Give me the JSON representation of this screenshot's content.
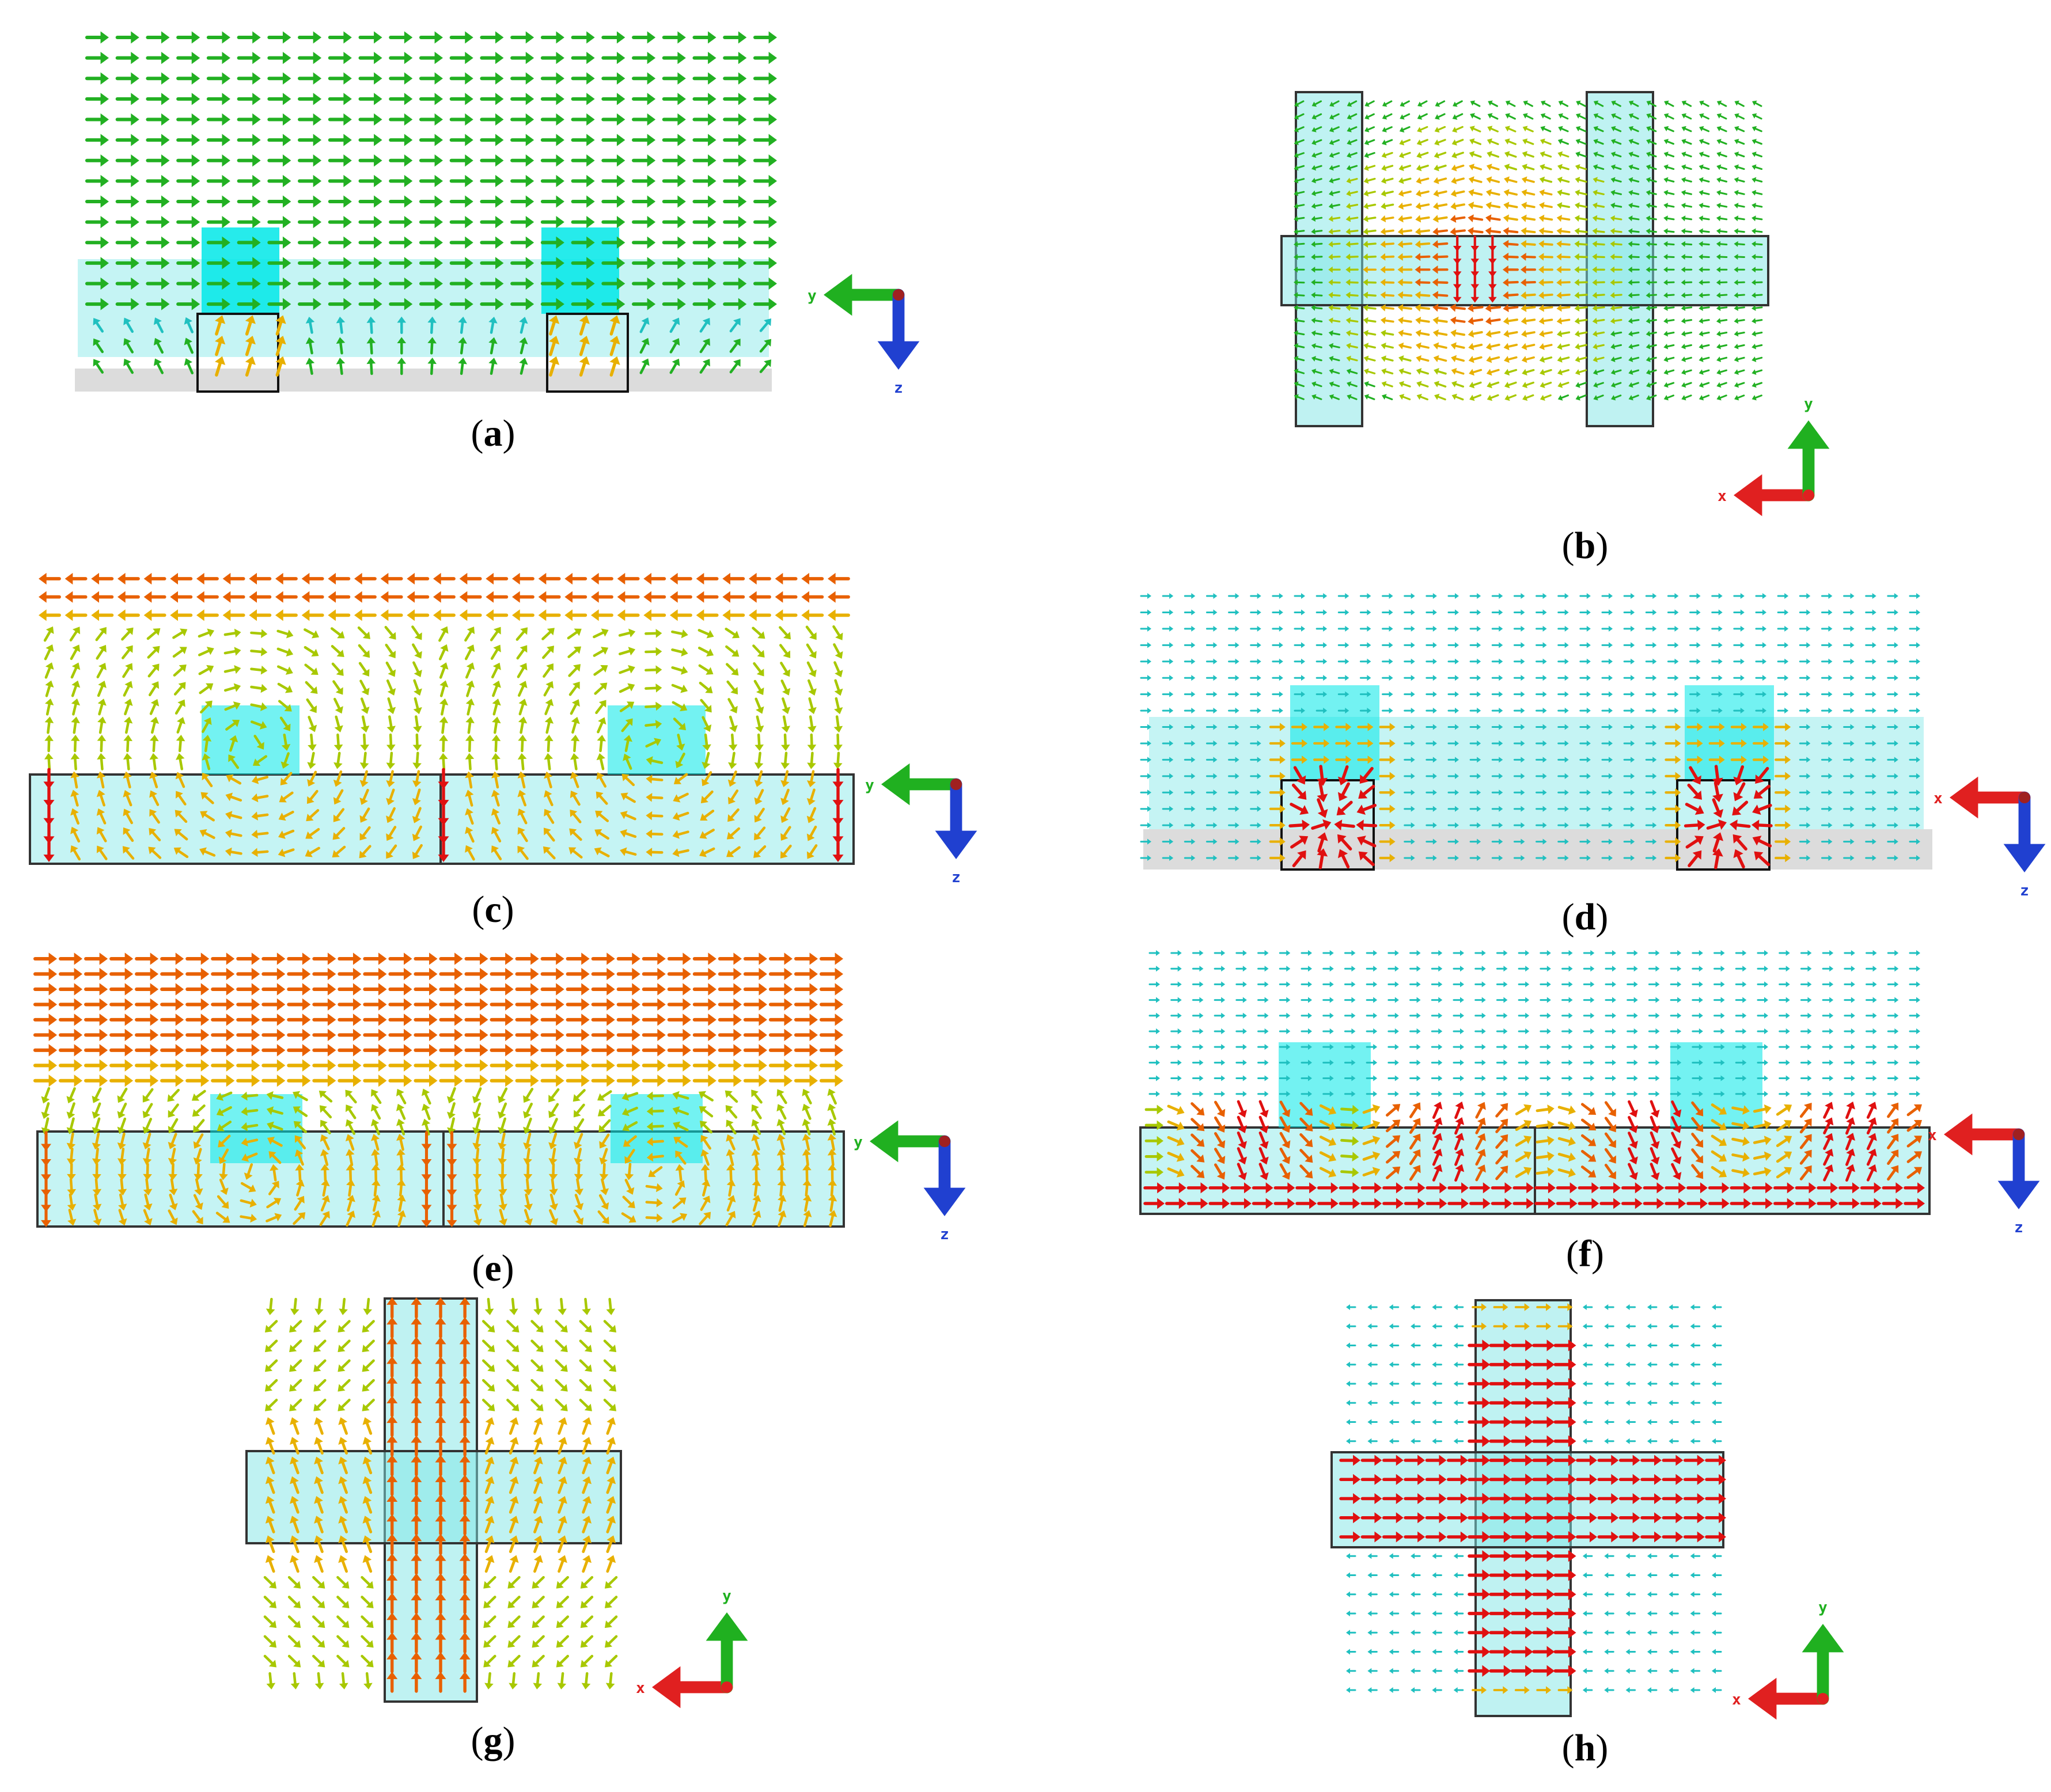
{
  "colors": {
    "dielectric": "#7fe6e6",
    "patch": "#00e8e8",
    "ground": "#d8d8d8",
    "x_axis": "#e02020",
    "y_axis": "#20b020",
    "z_axis": "#2040d0",
    "field_scale": [
      "#2a7fff",
      "#20c0c0",
      "#22b022",
      "#a8c800",
      "#e8b000",
      "#e86000",
      "#e01010"
    ]
  },
  "panels": [
    {
      "id": "a",
      "caption_letter": "a",
      "view": "side-y",
      "axes": {
        "horizontal": "y",
        "vertical": "z"
      },
      "pattern": "uniform-right-green"
    },
    {
      "id": "b",
      "caption_letter": "b",
      "view": "top",
      "axes": {
        "horizontal": "x",
        "vertical": "y"
      },
      "pattern": "top-h-pair-left"
    },
    {
      "id": "c",
      "caption_letter": "c",
      "view": "side-y",
      "axes": {
        "horizontal": "y",
        "vertical": "z"
      },
      "pattern": "side-left-vortex"
    },
    {
      "id": "d",
      "caption_letter": "d",
      "view": "side-x",
      "axes": {
        "horizontal": "x",
        "vertical": "z"
      },
      "pattern": "side-cyan-hot-cells"
    },
    {
      "id": "e",
      "caption_letter": "e",
      "view": "side-y",
      "axes": {
        "horizontal": "y",
        "vertical": "z"
      },
      "pattern": "side-right-orange"
    },
    {
      "id": "f",
      "caption_letter": "f",
      "view": "side-x",
      "axes": {
        "horizontal": "x",
        "vertical": "z"
      },
      "pattern": "side-cyan-red-bottom"
    },
    {
      "id": "g",
      "caption_letter": "g",
      "view": "top",
      "axes": {
        "horizontal": "x",
        "vertical": "y"
      },
      "pattern": "cross-up"
    },
    {
      "id": "h",
      "caption_letter": "h",
      "view": "top",
      "axes": {
        "horizontal": "x",
        "vertical": "y"
      },
      "pattern": "cross-right-red"
    }
  ]
}
